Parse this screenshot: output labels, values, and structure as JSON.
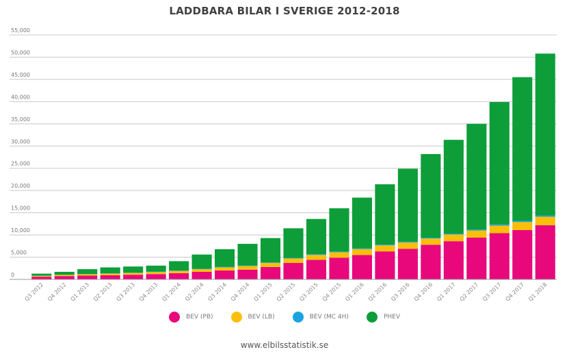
{
  "chart_data": {
    "type": "bar",
    "stacked": true,
    "title": "LADDBARA BILAR I SVERIGE 2012-2018",
    "xlabel": "",
    "ylabel": "",
    "ylim": [
      0,
      55000
    ],
    "yticks": [
      "0",
      "5,000",
      "10,000",
      "15,000",
      "20,000",
      "25,000",
      "30,000",
      "35,000",
      "40,000",
      "45,000",
      "50,000",
      "55,000"
    ],
    "grid": true,
    "legend_position": "bottom",
    "categories": [
      "Q3 2012",
      "Q4 2012",
      "Q1 2013",
      "Q2 2013",
      "Q3 2013",
      "Q4 2013",
      "Q1 2014",
      "Q2 2014",
      "Q3 2014",
      "Q4 2014",
      "Q1 2015",
      "Q2 2015",
      "Q3 2015",
      "Q4 2015",
      "Q1 2016",
      "Q2 2016",
      "Q3 2016",
      "Q4 2016",
      "Q1 2017",
      "Q2 2017",
      "Q3 2017",
      "Q4 2017",
      "Q1 2018"
    ],
    "series": [
      {
        "name": "BEV (PB)",
        "color": "#e8087c",
        "values": [
          600,
          750,
          850,
          950,
          1050,
          1200,
          1400,
          1700,
          2000,
          2200,
          2800,
          3700,
          4400,
          4900,
          5500,
          6300,
          6900,
          7800,
          8600,
          9400,
          10400,
          11100,
          12200
        ]
      },
      {
        "name": "BEV (LB)",
        "color": "#fbbf0a",
        "values": [
          200,
          250,
          300,
          350,
          400,
          450,
          500,
          600,
          700,
          800,
          900,
          1000,
          1100,
          1200,
          1300,
          1350,
          1400,
          1400,
          1500,
          1600,
          1700,
          1800,
          1900
        ]
      },
      {
        "name": "BEV (MC 4H)",
        "color": "#1ba3e0",
        "values": [
          30,
          40,
          50,
          60,
          70,
          80,
          90,
          100,
          110,
          120,
          130,
          140,
          150,
          160,
          170,
          180,
          190,
          200,
          220,
          240,
          260,
          280,
          300
        ]
      },
      {
        "name": "PHEV",
        "color": "#0d9e3a",
        "values": [
          470,
          660,
          1100,
          1340,
          1380,
          1370,
          2110,
          3200,
          3990,
          4880,
          5470,
          6660,
          7950,
          9740,
          11430,
          13570,
          16410,
          18800,
          21080,
          23760,
          27540,
          32320,
          36400
        ]
      }
    ]
  },
  "footer": {
    "source": "www.elbilsstatistik.se"
  }
}
